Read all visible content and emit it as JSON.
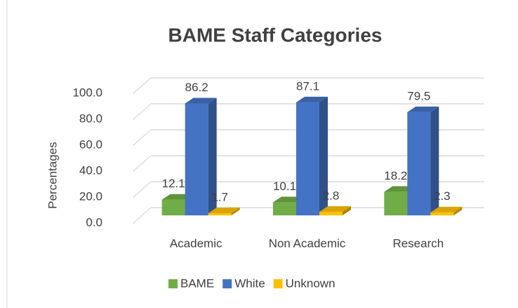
{
  "chart_data": {
    "type": "bar3d",
    "title": "BAME Staff Categories",
    "ylabel": "Percentages",
    "categories": [
      "Academic",
      "Non Academic",
      "Research"
    ],
    "series": [
      {
        "name": "BAME",
        "color": "#70ad47",
        "values": [
          12.1,
          10.1,
          18.2
        ]
      },
      {
        "name": "White",
        "color": "#4472c4",
        "values": [
          86.2,
          87.1,
          79.5
        ]
      },
      {
        "name": "Unknown",
        "color": "#ffc000",
        "values": [
          1.7,
          2.8,
          2.3
        ]
      }
    ],
    "ylim": [
      0,
      100
    ],
    "yticks": [
      {
        "value": 0,
        "label": "0.0"
      },
      {
        "value": 20,
        "label": "20.0"
      },
      {
        "value": 40,
        "label": "40.0"
      },
      {
        "value": 60,
        "label": "60.0"
      },
      {
        "value": 80,
        "label": "80.0"
      },
      {
        "value": 100,
        "label": "100.0"
      }
    ],
    "grid": true,
    "legend": "bottom"
  }
}
